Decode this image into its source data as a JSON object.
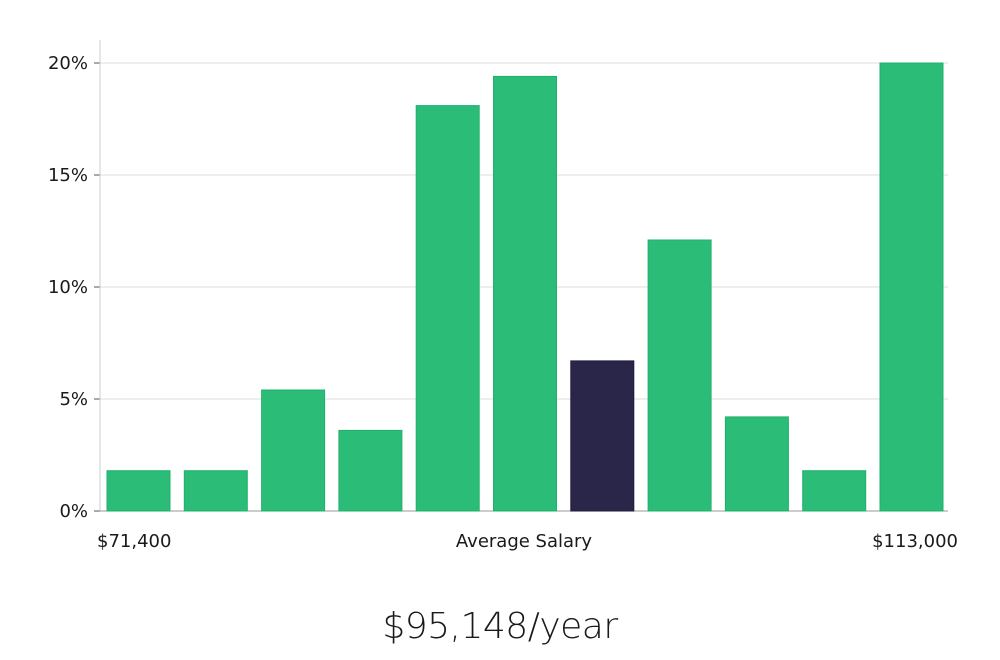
{
  "chart_data": {
    "type": "bar",
    "y_unit": "%",
    "ylim": [
      0,
      20
    ],
    "yticks": [
      0,
      5,
      10,
      15,
      20
    ],
    "ytick_labels": [
      "0%",
      "5%",
      "10%",
      "15%",
      "20%"
    ],
    "grid": true,
    "x_labels": {
      "left": "$71,400",
      "center": "Average Salary",
      "right": "$113,000"
    },
    "values": [
      1.8,
      1.8,
      5.4,
      3.6,
      18.1,
      19.4,
      6.7,
      12.1,
      4.2,
      1.8,
      20.0
    ],
    "highlight_index": 6,
    "colors": {
      "bar": "#2bbd77",
      "highlight": "#29264a",
      "grid": "#dddddd",
      "axis": "#cccccc"
    }
  },
  "summary": {
    "salary_label": "$95,148/year"
  }
}
